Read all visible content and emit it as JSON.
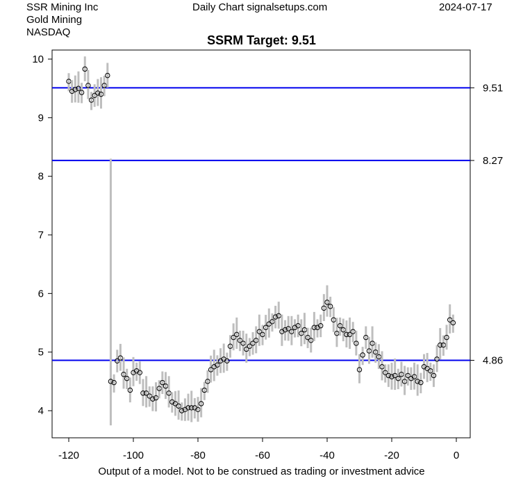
{
  "header": {
    "company": "SSR Mining Inc",
    "sector": "Gold Mining",
    "exchange": "NASDAQ",
    "source": "Daily Chart signalsetups.com",
    "date": "2024-07-17"
  },
  "footer": "Output of a model. Not to be construed as trading or investment advice",
  "chart_data": {
    "type": "line",
    "title": "SSRM Target: 9.51",
    "xlim": [
      -124,
      4
    ],
    "ylim": [
      3.55,
      10.15
    ],
    "xticks": [
      -120,
      -100,
      -80,
      -60,
      -40,
      -20,
      0
    ],
    "yticks": [
      4,
      5,
      6,
      7,
      8,
      9,
      10
    ],
    "hlines": [
      {
        "value": 9.51,
        "label": "9.51"
      },
      {
        "value": 8.27,
        "label": "8.27"
      },
      {
        "value": 4.86,
        "label": "4.86"
      }
    ],
    "colors": {
      "hline": "#0000ee",
      "bar": "#bebebe",
      "point": "#000000"
    },
    "x_start": -120,
    "close": [
      9.62,
      9.45,
      9.48,
      9.5,
      9.43,
      9.83,
      9.55,
      9.3,
      9.38,
      9.42,
      9.4,
      9.55,
      9.72,
      4.5,
      4.48,
      4.85,
      4.9,
      4.62,
      4.55,
      4.35,
      4.65,
      4.68,
      4.65,
      4.3,
      4.3,
      4.25,
      4.2,
      4.22,
      4.38,
      4.48,
      4.42,
      4.3,
      4.15,
      4.12,
      4.08,
      4.0,
      4.02,
      4.05,
      4.05,
      4.05,
      4.02,
      4.12,
      4.35,
      4.5,
      4.7,
      4.75,
      4.78,
      4.85,
      4.88,
      4.85,
      5.1,
      5.25,
      5.3,
      5.2,
      5.15,
      5.05,
      5.1,
      5.15,
      5.2,
      5.35,
      5.3,
      5.42,
      5.48,
      5.52,
      5.6,
      5.62,
      5.35,
      5.38,
      5.4,
      5.35,
      5.42,
      5.45,
      5.32,
      5.38,
      5.25,
      5.2,
      5.42,
      5.42,
      5.45,
      5.75,
      5.85,
      5.78,
      5.55,
      5.32,
      5.45,
      5.38,
      5.3,
      5.3,
      5.35,
      5.15,
      4.7,
      4.95,
      5.25,
      5.02,
      5.15,
      5.0,
      4.92,
      4.75,
      4.65,
      4.6,
      4.58,
      4.6,
      4.55,
      4.62,
      4.5,
      4.6,
      4.55,
      4.58,
      4.5,
      4.48,
      4.75,
      4.72,
      4.68,
      4.6,
      4.88,
      5.12,
      5.12,
      5.25,
      5.55,
      5.5
    ],
    "high_offset": 0.14,
    "low_offset": 0.17,
    "gap_bar": {
      "x": -107,
      "low": 3.75,
      "high": 8.3
    }
  }
}
